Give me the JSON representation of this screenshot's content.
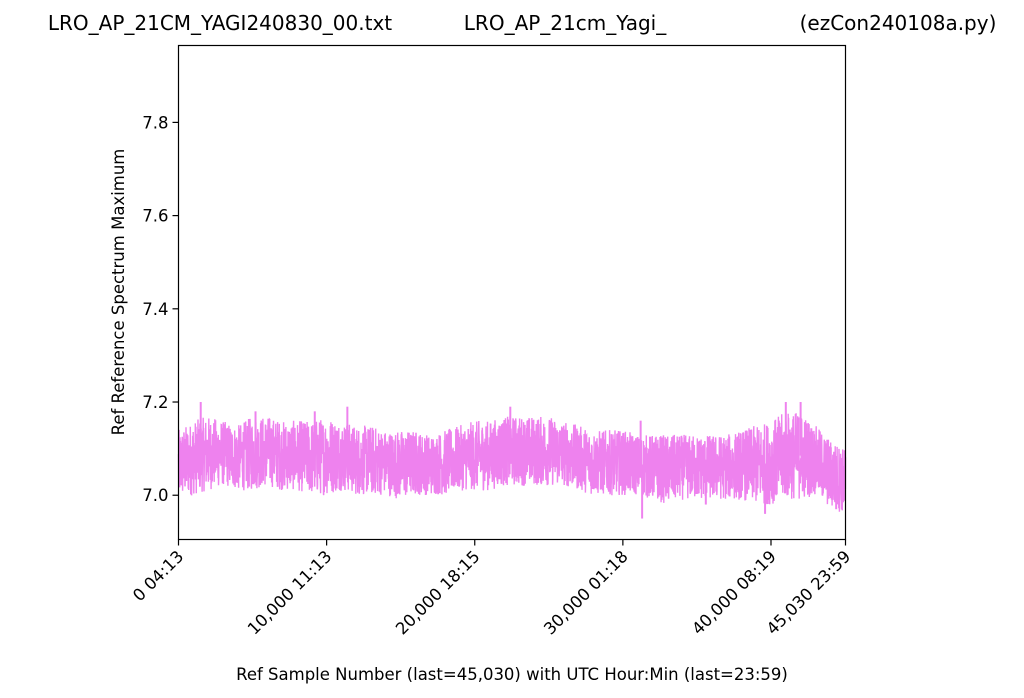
{
  "header": {
    "left": "LRO_AP_21CM_YAGI240830_00.txt",
    "center": "LRO_AP_21cm_Yagi_",
    "right": "(ezCon240108a.py)"
  },
  "chart_data": {
    "type": "line",
    "title": "",
    "xlabel": "Ref Sample Number (last=45,030) with UTC Hour:Min (last=23:59)",
    "ylabel": "Ref Reference Spectrum Maximum",
    "xlim": [
      0,
      45030
    ],
    "ylim": [
      6.905,
      7.965
    ],
    "x_ticks": [
      {
        "value": 0,
        "label": "0  04:13"
      },
      {
        "value": 10000,
        "label": "10,000  11:13"
      },
      {
        "value": 20000,
        "label": "20,000  18:15"
      },
      {
        "value": 30000,
        "label": "30,000  01:18"
      },
      {
        "value": 40000,
        "label": "40,000  08:19"
      },
      {
        "value": 45030,
        "label": "45,030  23:59"
      }
    ],
    "y_ticks": [
      {
        "value": 7.0,
        "label": "7.0"
      },
      {
        "value": 7.2,
        "label": "7.2"
      },
      {
        "value": 7.4,
        "label": "7.4"
      },
      {
        "value": 7.6,
        "label": "7.6"
      },
      {
        "value": 7.8,
        "label": "7.8"
      }
    ],
    "grid": false,
    "series": [
      {
        "color": "#ee82ee",
        "band": {
          "x": [
            0,
            1000,
            2000,
            3000,
            4000,
            5000,
            6000,
            7000,
            8000,
            9000,
            10000,
            11000,
            12000,
            13000,
            14000,
            15000,
            16000,
            17000,
            18000,
            19000,
            20000,
            21000,
            22000,
            23000,
            24000,
            25000,
            26000,
            27000,
            28000,
            29000,
            30000,
            31000,
            32000,
            33000,
            34000,
            35000,
            36000,
            37000,
            38000,
            39000,
            40000,
            41000,
            42000,
            43000,
            44000,
            45030
          ],
          "low": [
            6.99,
            7.0,
            7.01,
            7.02,
            7.01,
            7.01,
            7.02,
            7.01,
            7.01,
            7.0,
            7.0,
            7.01,
            7.0,
            7.0,
            7.0,
            6.99,
            7.0,
            7.0,
            7.0,
            7.01,
            7.01,
            7.01,
            7.02,
            7.02,
            7.02,
            7.02,
            7.02,
            7.01,
            7.0,
            7.0,
            7.0,
            7.0,
            6.99,
            6.98,
            6.99,
            6.99,
            6.99,
            6.99,
            6.99,
            6.98,
            6.98,
            6.99,
            6.99,
            7.0,
            6.97,
            6.96
          ],
          "high": [
            7.14,
            7.16,
            7.17,
            7.16,
            7.15,
            7.17,
            7.17,
            7.16,
            7.16,
            7.16,
            7.17,
            7.16,
            7.15,
            7.15,
            7.14,
            7.14,
            7.14,
            7.13,
            7.14,
            7.15,
            7.16,
            7.16,
            7.17,
            7.17,
            7.17,
            7.17,
            7.16,
            7.15,
            7.14,
            7.14,
            7.14,
            7.13,
            7.13,
            7.13,
            7.13,
            7.13,
            7.13,
            7.13,
            7.14,
            7.15,
            7.16,
            7.18,
            7.18,
            7.15,
            7.12,
            7.1
          ],
          "spikes": [
            {
              "x": 1500,
              "y": 7.2
            },
            {
              "x": 5200,
              "y": 7.18
            },
            {
              "x": 9200,
              "y": 7.18
            },
            {
              "x": 11400,
              "y": 7.19
            },
            {
              "x": 22400,
              "y": 7.19
            },
            {
              "x": 31200,
              "y": 7.16
            },
            {
              "x": 41000,
              "y": 7.2
            },
            {
              "x": 42000,
              "y": 7.2
            },
            {
              "x": 31300,
              "y": 6.95
            },
            {
              "x": 39600,
              "y": 6.96
            },
            {
              "x": 44400,
              "y": 6.97
            },
            {
              "x": 35600,
              "y": 6.98
            }
          ]
        }
      }
    ]
  }
}
